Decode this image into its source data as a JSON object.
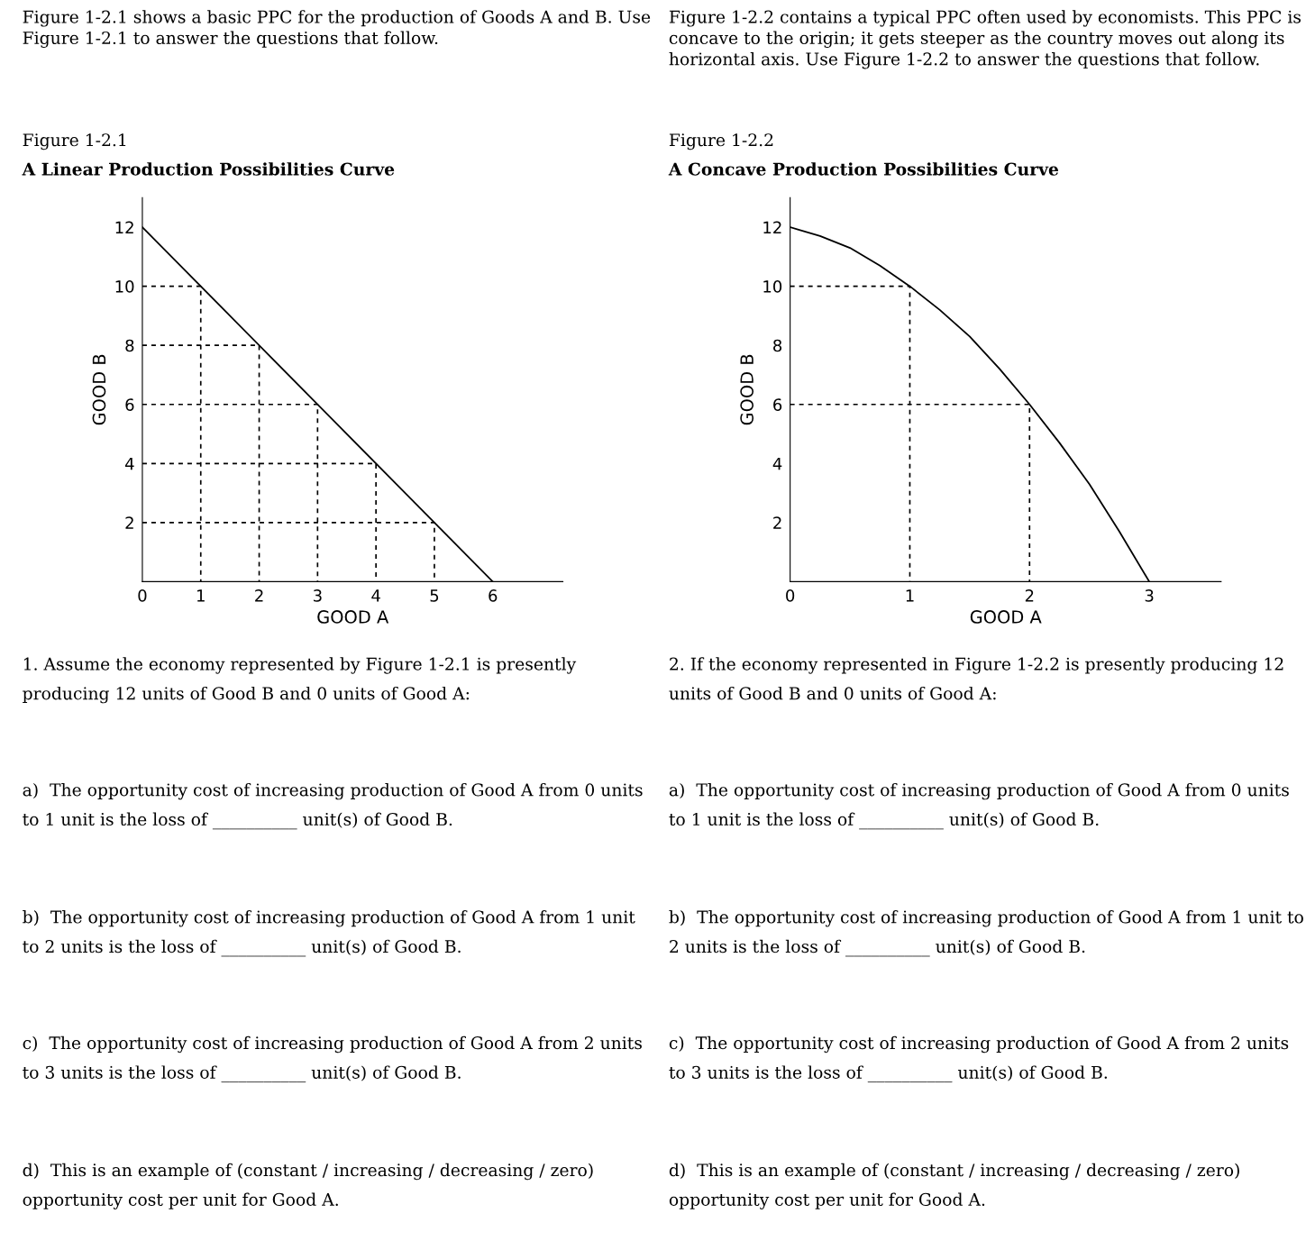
{
  "chart_data": [
    {
      "type": "line",
      "subtitle": "Figure 1-2.1",
      "title": "A Linear Production Possibilities Curve",
      "xlabel": "GOOD A",
      "ylabel": "GOOD B",
      "xlim": [
        0,
        7.2
      ],
      "ylim": [
        0,
        13
      ],
      "xticks": [
        0,
        1,
        2,
        3,
        4,
        5,
        6
      ],
      "yticks": [
        2,
        4,
        6,
        8,
        10,
        12
      ],
      "grid": false,
      "legend": false,
      "marker": "none",
      "series": [
        {
          "color": "#000000",
          "line_style": "solid",
          "x": [
            0,
            6
          ],
          "values": [
            12,
            0
          ]
        },
        {
          "color": "#000000",
          "line_style": "dashed",
          "x": [
            0,
            1,
            1,
            null,
            0,
            2,
            2,
            null,
            0,
            3,
            3,
            null,
            0,
            4,
            4,
            null,
            0,
            5,
            5
          ],
          "values": [
            10,
            10,
            0,
            null,
            8,
            8,
            0,
            null,
            6,
            6,
            0,
            null,
            4,
            4,
            0,
            null,
            2,
            2,
            0
          ]
        }
      ],
      "annotations": [
        "Figure 1-2.1 shows a basic PPC for the production of Goods A and B. Use Figure 1-2.1 to answer the questions that follow.",
        "1. Assume the economy represented by Figure 1-2.1 is presently producing 12 units of Good B and 0 units of Good A:",
        "a)  The opportunity cost of increasing production of Good A from 0 units to 1 unit is the loss of __________ unit(s) of Good B.",
        "b)  The opportunity cost of increasing production of Good A from 1 unit to 2 units is the loss of __________ unit(s) of Good B.",
        "c)  The opportunity cost of increasing production of Good A from 2 units to 3 units is the loss of __________ unit(s) of Good B.",
        "d)  This is an example of (constant / increasing / decreasing / zero) opportunity cost per unit for Good A."
      ]
    },
    {
      "type": "line",
      "subtitle": "Figure 1-2.2",
      "title": "A Concave Production Possibilities Curve",
      "xlabel": "GOOD A",
      "ylabel": "GOOD B",
      "xlim": [
        0,
        3.6
      ],
      "ylim": [
        0,
        13
      ],
      "xticks": [
        0,
        1,
        2,
        3
      ],
      "yticks": [
        2,
        4,
        6,
        8,
        10,
        12
      ],
      "grid": false,
      "legend": false,
      "marker": "none",
      "series": [
        {
          "color": "#000000",
          "line_style": "solid",
          "x": [
            0,
            0.25,
            0.5,
            0.75,
            1,
            1.25,
            1.5,
            1.75,
            2,
            2.25,
            2.5,
            2.75,
            3
          ],
          "values": [
            12,
            11.7,
            11.3,
            10.7,
            10,
            9.2,
            8.3,
            7.2,
            6,
            4.7,
            3.3,
            1.7,
            0
          ]
        },
        {
          "color": "#000000",
          "line_style": "dashed",
          "x": [
            0,
            1,
            1,
            null,
            0,
            2,
            2
          ],
          "values": [
            10,
            10,
            0,
            null,
            6,
            6,
            0
          ]
        }
      ],
      "annotations": [
        "Figure 1-2.2 contains a typical PPC often used by economists. This PPC is concave to the origin; it gets steeper as the country moves out along its horizontal axis. Use Figure 1-2.2 to answer the questions that follow.",
        "2. If the economy represented in Figure 1-2.2 is presently producing 12 units of Good B and 0 units of Good A:",
        "a)  The opportunity cost of increasing production of Good A from 0 units to 1 unit is the loss of __________ unit(s) of Good B.",
        "b)  The opportunity cost of increasing production of Good A from 1 unit to 2 units is the loss of __________ unit(s) of Good B.",
        "c)  The opportunity cost of increasing production of Good A from 2 units to 3 units is the loss of __________ unit(s) of Good B.",
        "d)  This is an example of (constant / increasing / decreasing / zero) opportunity cost per unit for Good A."
      ]
    }
  ]
}
